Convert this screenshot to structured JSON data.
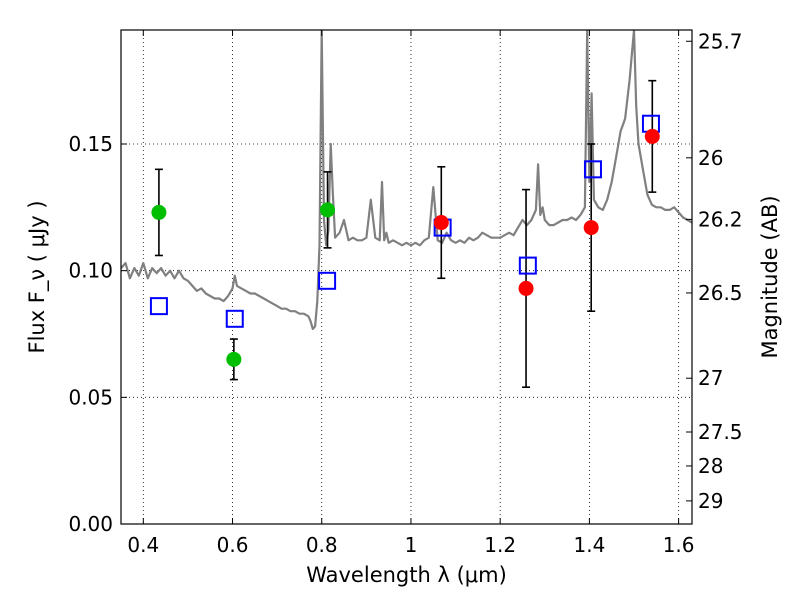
{
  "chart_data": {
    "type": "scatter",
    "title": "",
    "xlabel": "Wavelength  λ (μm)",
    "ylabel": "Flux  F_ν  ( μJy )",
    "ylabel_right": "Magnitude (AB)",
    "xlim": [
      0.35,
      1.63
    ],
    "ylim": [
      0.0,
      0.195
    ],
    "grid": true,
    "x_ticks": [
      {
        "value": 0.4,
        "label": "0.4"
      },
      {
        "value": 0.6,
        "label": "0.6"
      },
      {
        "value": 0.8,
        "label": "0.8"
      },
      {
        "value": 1.0,
        "label": "1"
      },
      {
        "value": 1.2,
        "label": "1.2"
      },
      {
        "value": 1.4,
        "label": "1.4"
      },
      {
        "value": 1.6,
        "label": "1.6"
      }
    ],
    "y_ticks": [
      {
        "value": 0.0,
        "label": "0.00"
      },
      {
        "value": 0.05,
        "label": "0.05"
      },
      {
        "value": 0.1,
        "label": "0.10"
      },
      {
        "value": 0.15,
        "label": "0.15"
      }
    ],
    "y_ticks_right": [
      {
        "value": 25.7,
        "label": "25.7"
      },
      {
        "value": 26.0,
        "label": "26"
      },
      {
        "value": 26.2,
        "label": "26.2"
      },
      {
        "value": 26.5,
        "label": "26.5"
      },
      {
        "value": 27.0,
        "label": "27"
      },
      {
        "value": 27.5,
        "label": "27.5"
      },
      {
        "value": 28.0,
        "label": "28"
      },
      {
        "value": 29.0,
        "label": "29"
      }
    ],
    "series": [
      {
        "kind": "line",
        "color": "#808080",
        "x": [
          0.35,
          0.36,
          0.37,
          0.38,
          0.39,
          0.4,
          0.41,
          0.42,
          0.43,
          0.44,
          0.45,
          0.46,
          0.47,
          0.48,
          0.49,
          0.5,
          0.51,
          0.52,
          0.53,
          0.54,
          0.55,
          0.56,
          0.57,
          0.58,
          0.59,
          0.6,
          0.605,
          0.61,
          0.62,
          0.63,
          0.64,
          0.65,
          0.66,
          0.67,
          0.68,
          0.69,
          0.7,
          0.71,
          0.72,
          0.73,
          0.74,
          0.75,
          0.76,
          0.77,
          0.775,
          0.78,
          0.785,
          0.79,
          0.795,
          0.8,
          0.805,
          0.81,
          0.815,
          0.82,
          0.825,
          0.83,
          0.84,
          0.85,
          0.86,
          0.87,
          0.88,
          0.89,
          0.9,
          0.91,
          0.92,
          0.93,
          0.935,
          0.94,
          0.945,
          0.95,
          0.96,
          0.97,
          0.98,
          0.99,
          1.0,
          1.01,
          1.02,
          1.03,
          1.04,
          1.05,
          1.06,
          1.07,
          1.08,
          1.09,
          1.1,
          1.11,
          1.12,
          1.13,
          1.14,
          1.15,
          1.16,
          1.17,
          1.18,
          1.19,
          1.2,
          1.21,
          1.22,
          1.23,
          1.24,
          1.25,
          1.26,
          1.27,
          1.28,
          1.285,
          1.29,
          1.295,
          1.3,
          1.31,
          1.32,
          1.33,
          1.34,
          1.35,
          1.36,
          1.37,
          1.38,
          1.39,
          1.395,
          1.4,
          1.405,
          1.41,
          1.42,
          1.43,
          1.44,
          1.45,
          1.46,
          1.47,
          1.48,
          1.49,
          1.5,
          1.505,
          1.51,
          1.52,
          1.53,
          1.54,
          1.55,
          1.56,
          1.57,
          1.58,
          1.59,
          1.6,
          1.61,
          1.62,
          1.63
        ],
        "y": [
          0.101,
          0.103,
          0.097,
          0.101,
          0.098,
          0.103,
          0.097,
          0.101,
          0.099,
          0.101,
          0.098,
          0.1,
          0.097,
          0.1,
          0.097,
          0.096,
          0.094,
          0.092,
          0.093,
          0.091,
          0.09,
          0.089,
          0.089,
          0.088,
          0.09,
          0.093,
          0.098,
          0.094,
          0.093,
          0.092,
          0.091,
          0.091,
          0.09,
          0.089,
          0.088,
          0.087,
          0.086,
          0.085,
          0.085,
          0.084,
          0.084,
          0.083,
          0.083,
          0.082,
          0.08,
          0.077,
          0.078,
          0.088,
          0.11,
          0.195,
          0.12,
          0.11,
          0.116,
          0.15,
          0.13,
          0.113,
          0.115,
          0.12,
          0.112,
          0.113,
          0.112,
          0.112,
          0.113,
          0.128,
          0.113,
          0.112,
          0.135,
          0.112,
          0.115,
          0.111,
          0.112,
          0.111,
          0.11,
          0.111,
          0.11,
          0.111,
          0.11,
          0.112,
          0.113,
          0.133,
          0.112,
          0.111,
          0.115,
          0.112,
          0.111,
          0.112,
          0.111,
          0.113,
          0.112,
          0.113,
          0.115,
          0.114,
          0.113,
          0.113,
          0.113,
          0.114,
          0.115,
          0.114,
          0.117,
          0.12,
          0.118,
          0.12,
          0.124,
          0.142,
          0.122,
          0.125,
          0.12,
          0.118,
          0.118,
          0.119,
          0.12,
          0.12,
          0.121,
          0.12,
          0.122,
          0.125,
          0.195,
          0.135,
          0.17,
          0.128,
          0.125,
          0.124,
          0.128,
          0.135,
          0.145,
          0.155,
          0.16,
          0.175,
          0.195,
          0.165,
          0.15,
          0.14,
          0.13,
          0.126,
          0.125,
          0.125,
          0.124,
          0.124,
          0.125,
          0.123,
          0.121,
          0.12,
          0.119
        ]
      },
      {
        "kind": "marker",
        "marker": "circle",
        "color": "#00bf00",
        "x": [
          0.435,
          0.603,
          0.813
        ],
        "y": [
          0.123,
          0.065,
          0.124
        ],
        "err": [
          0.017,
          0.008,
          0.015
        ]
      },
      {
        "kind": "marker",
        "marker": "circle",
        "color": "#ff0000",
        "x": [
          1.068,
          1.258,
          1.404,
          1.541
        ],
        "y": [
          0.119,
          0.093,
          0.117,
          0.153
        ],
        "err": [
          0.022,
          0.039,
          0.033,
          0.022
        ]
      },
      {
        "kind": "marker",
        "marker": "square",
        "color": "#0000ff",
        "x": [
          0.435,
          0.605,
          0.812,
          1.071,
          1.262,
          1.408,
          1.538
        ],
        "y": [
          0.086,
          0.081,
          0.096,
          0.117,
          0.102,
          0.14,
          0.158
        ]
      }
    ]
  }
}
